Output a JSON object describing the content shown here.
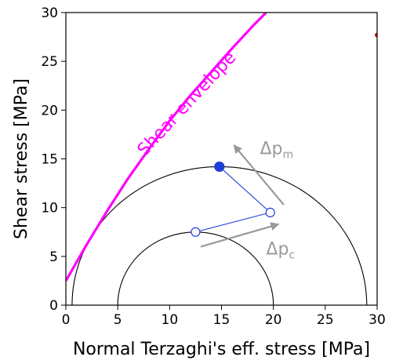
{
  "chart_data": {
    "type": "scatter",
    "xlabel": "Normal Terzaghi's eff. stress [MPa]",
    "ylabel": "Shear stress [MPa]",
    "xlim": [
      0,
      30
    ],
    "ylim": [
      0,
      30
    ],
    "x_ticks": [
      "0",
      "5",
      "10",
      "15",
      "20",
      "25",
      "30"
    ],
    "y_ticks": [
      "0",
      "5",
      "10",
      "15",
      "20",
      "25",
      "30"
    ],
    "grid": false,
    "mohr_circles": [
      {
        "center": 12.5,
        "radius": 7.5,
        "color": "#000000"
      },
      {
        "center": 14.8,
        "radius": 14.2,
        "color": "#000000"
      }
    ],
    "stress_path": {
      "color": "#1f3fd6",
      "points": [
        {
          "x": 12.5,
          "y": 7.5,
          "filled": false
        },
        {
          "x": 19.7,
          "y": 9.5,
          "filled": false
        },
        {
          "x": 14.8,
          "y": 14.2,
          "filled": true
        }
      ]
    },
    "shear_envelope": {
      "label": "Shear envelope",
      "color": "#ff00ff",
      "points": [
        [
          0,
          2.5
        ],
        [
          2,
          6.2
        ],
        [
          4,
          9.7
        ],
        [
          6,
          13.0
        ],
        [
          8,
          16.0
        ],
        [
          10,
          18.9
        ],
        [
          12,
          21.5
        ],
        [
          14,
          23.9
        ],
        [
          16,
          26.3
        ],
        [
          18,
          28.6
        ],
        [
          19.3,
          30.0
        ]
      ]
    },
    "arrows": [
      {
        "label": "Δp",
        "subscript": "m",
        "color": "#999999",
        "from": [
          21.0,
          10.3
        ],
        "to": [
          16.2,
          16.4
        ]
      },
      {
        "label": "Δp",
        "subscript": "c",
        "color": "#999999",
        "from": [
          13.0,
          6.0
        ],
        "to": [
          20.5,
          8.3
        ]
      }
    ],
    "edge_marker": {
      "x": 30.0,
      "y": 27.7,
      "color": "#dd0000"
    }
  }
}
